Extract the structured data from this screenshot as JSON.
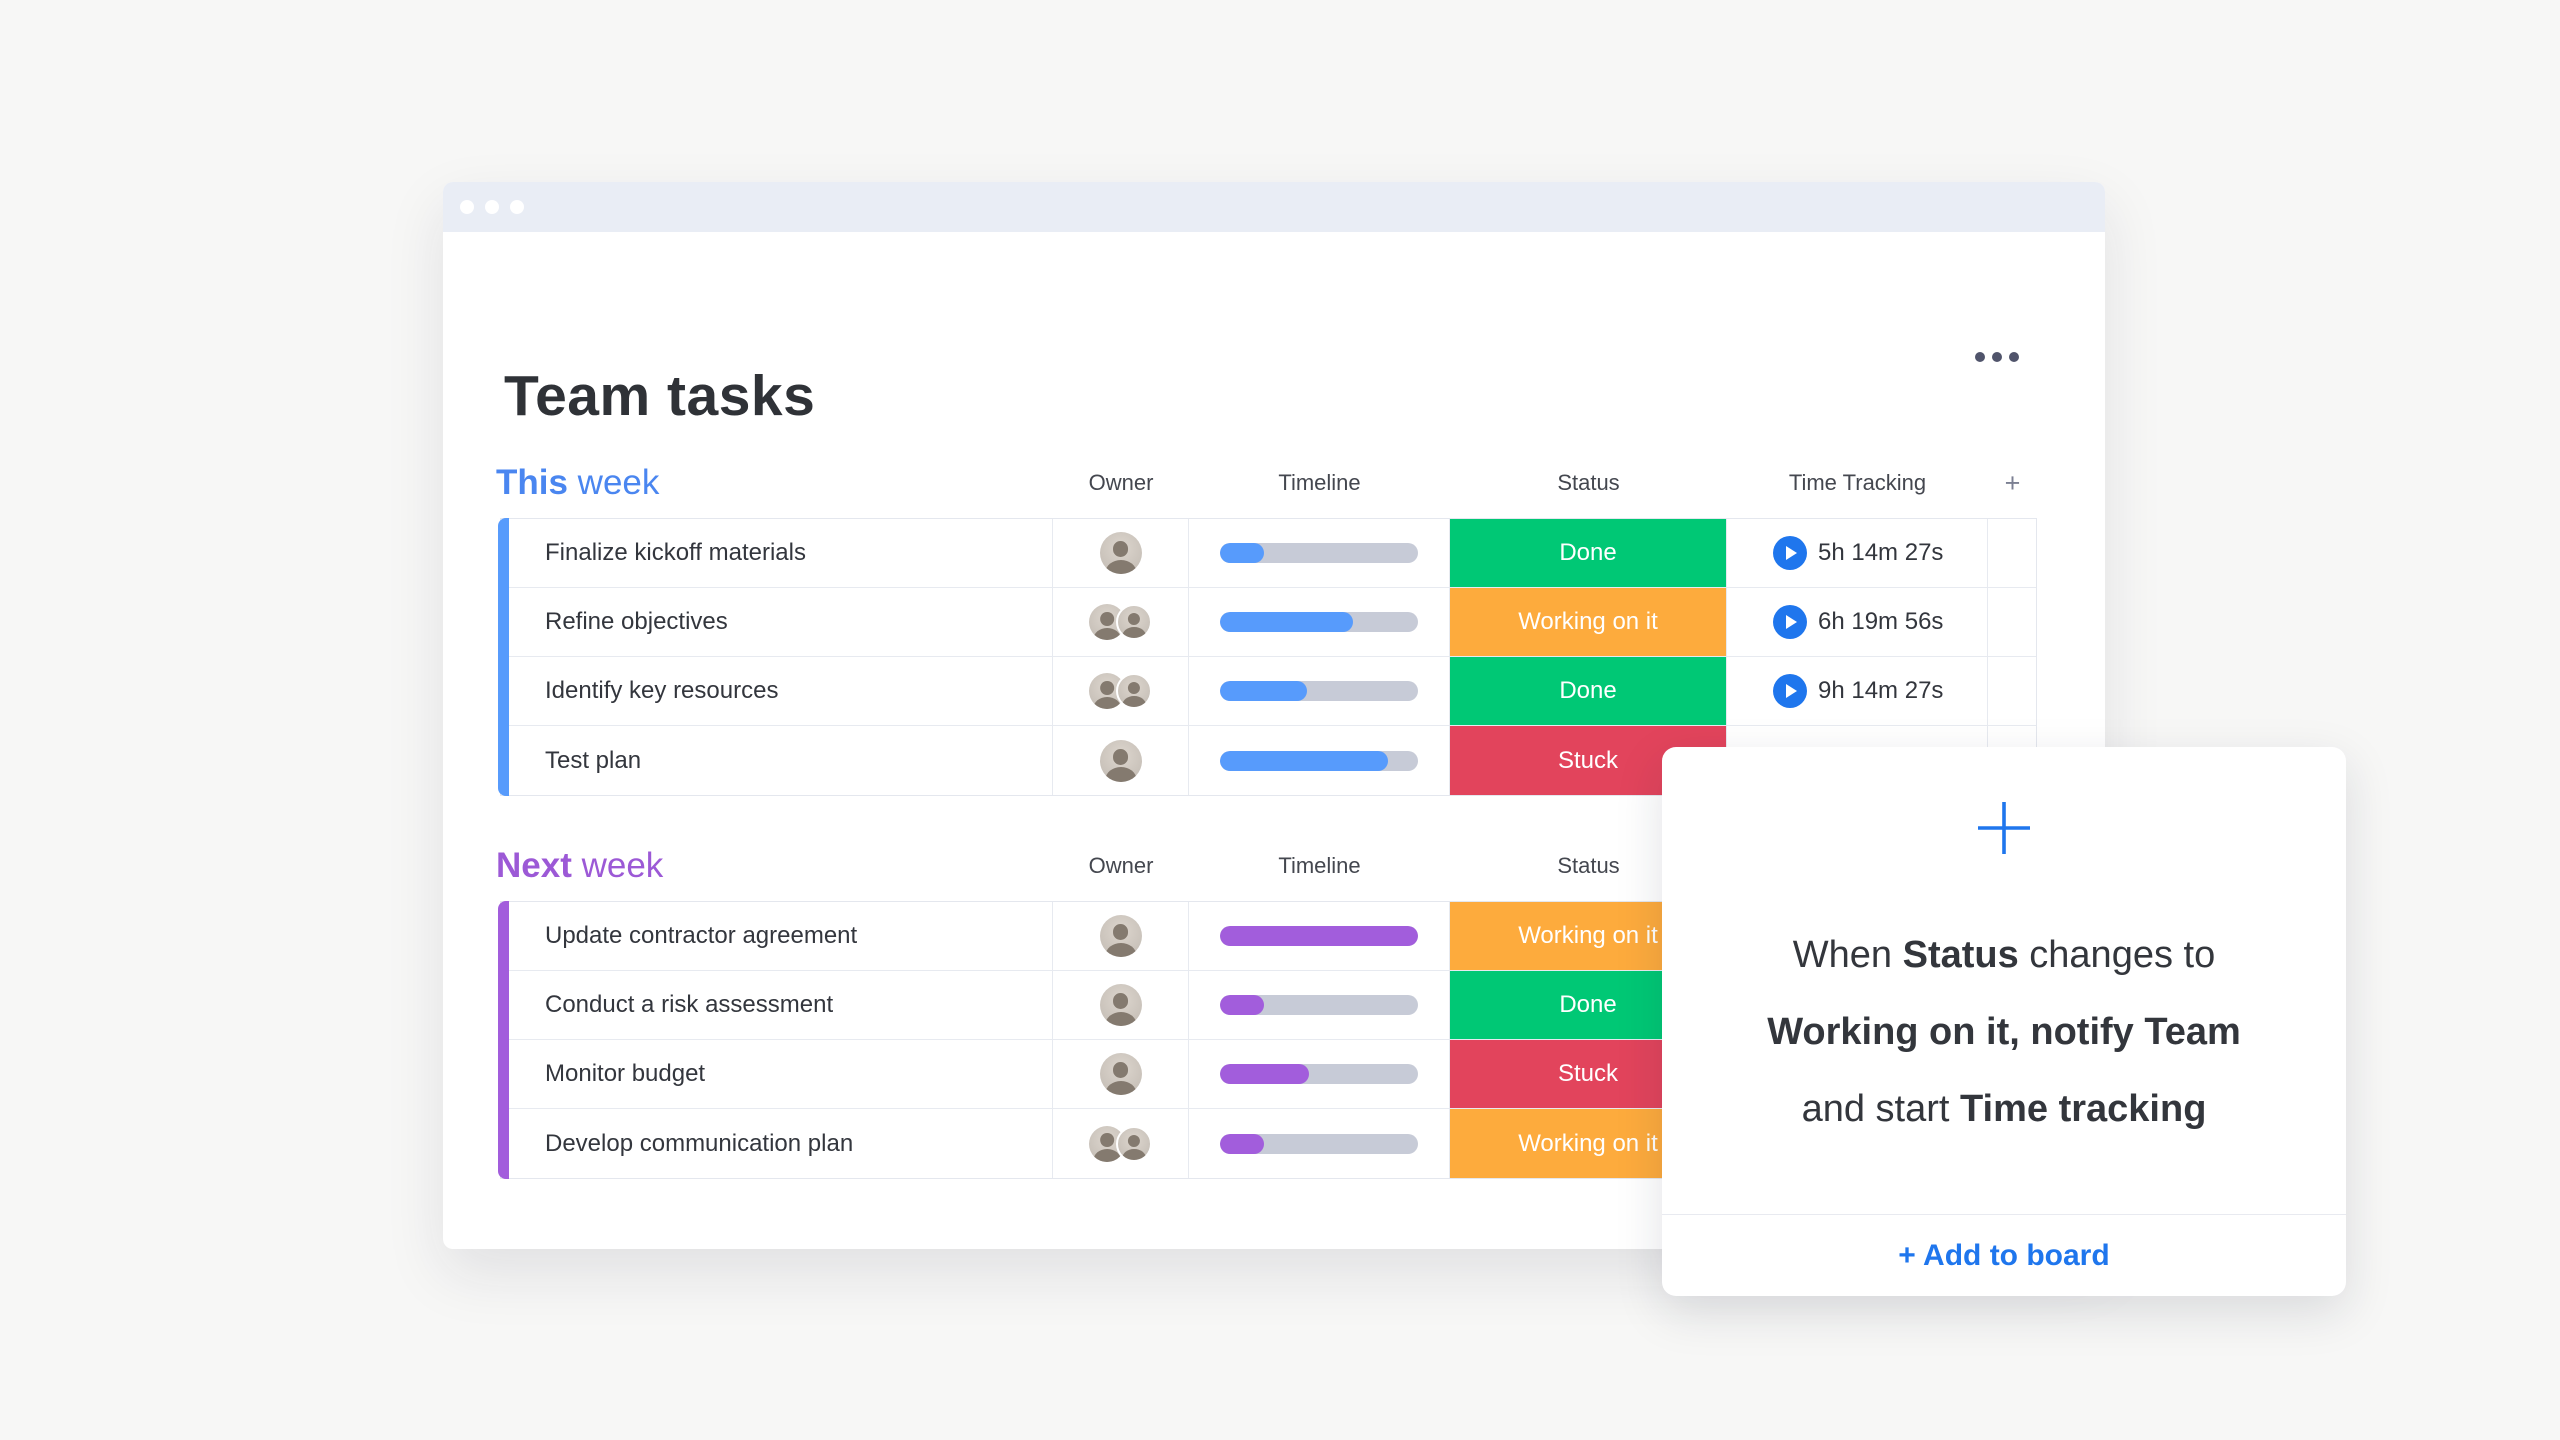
{
  "board": {
    "title": "Team tasks",
    "menu_icon": "ellipsis-icon"
  },
  "columns": [
    "Owner",
    "Timeline",
    "Status",
    "Time Tracking"
  ],
  "add_column_glyph": "+",
  "groups": [
    {
      "title_bold": "This",
      "title_rest": " week",
      "heading_color": "#4a86f0",
      "color": "#579bfc",
      "rows": [
        {
          "task": "Finalize kickoff materials",
          "owners": 1,
          "timeline_pct": 22,
          "status_label": "Done",
          "status_color": "#00c875",
          "time": "5h 14m 27s"
        },
        {
          "task": "Refine objectives",
          "owners": 2,
          "timeline_pct": 67,
          "status_label": "Working on it",
          "status_color": "#fdab3d",
          "time": "6h 19m 56s"
        },
        {
          "task": "Identify key resources",
          "owners": 2,
          "timeline_pct": 44,
          "status_label": "Done",
          "status_color": "#00c875",
          "time": "9h 14m 27s"
        },
        {
          "task": "Test plan",
          "owners": 1,
          "timeline_pct": 85,
          "status_label": "Stuck",
          "status_color": "#e2445c",
          "time": null
        }
      ]
    },
    {
      "title_bold": "Next",
      "title_rest": " week",
      "heading_color": "#9c59d6",
      "color": "#a25ddc",
      "rows": [
        {
          "task": "Update contractor agreement",
          "owners": 1,
          "timeline_pct": 100,
          "status_label": "Working on it",
          "status_color": "#fdab3d",
          "time": null
        },
        {
          "task": "Conduct a risk assessment",
          "owners": 1,
          "timeline_pct": 22,
          "status_label": "Done",
          "status_color": "#00c875",
          "time": null
        },
        {
          "task": "Monitor budget",
          "owners": 1,
          "timeline_pct": 45,
          "status_label": "Stuck",
          "status_color": "#e2445c",
          "time": null
        },
        {
          "task": "Develop communication plan",
          "owners": 2,
          "timeline_pct": 22,
          "status_label": "Working on it",
          "status_color": "#fdab3d",
          "time": null
        }
      ]
    }
  ],
  "automation_card": {
    "plus_icon": "plus-icon",
    "lines": [
      {
        "parts": [
          {
            "text": "When ",
            "bold": false
          },
          {
            "text": "Status",
            "bold": true
          },
          {
            "text": " changes to",
            "bold": false
          }
        ]
      },
      {
        "parts": [
          {
            "text": "Working on it, notify Team",
            "bold": true
          }
        ]
      },
      {
        "parts": [
          {
            "text": "and start ",
            "bold": false
          },
          {
            "text": "Time tracking",
            "bold": true
          }
        ]
      }
    ],
    "cta": "+ Add to board"
  },
  "icons": {
    "time_tracking_play": "play-icon",
    "window_dots": "window-dot-icon"
  },
  "colors": {
    "done_green": "#00c875",
    "working_orange": "#fdab3d",
    "stuck_red": "#e2445c",
    "group_blue": "#579bfc",
    "group_purple": "#a25ddc",
    "link_blue": "#1f76ed",
    "timeline_track": "#c7cbd7",
    "titlebar": "#e9edf5"
  }
}
